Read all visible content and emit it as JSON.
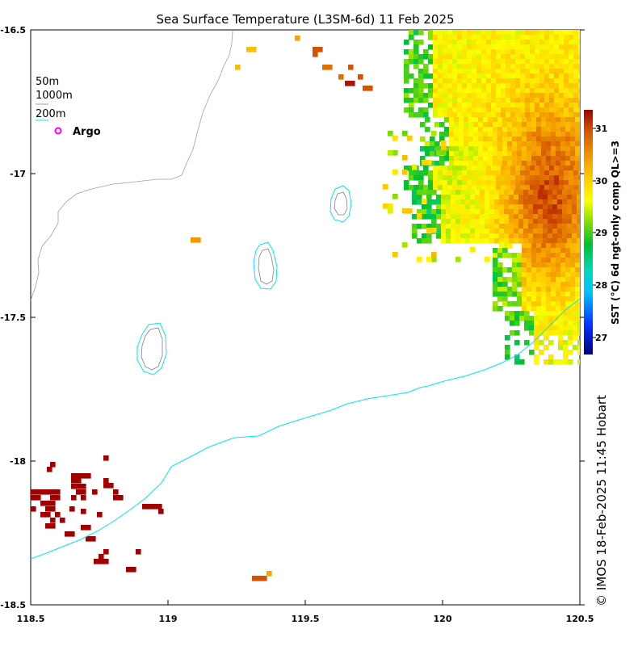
{
  "title": "Sea Surface Temperature (L3SM-6d) 11 Feb 2025",
  "credit": "© IMOS 18-Feb-2025 11:45 Hobart",
  "legend": {
    "items": [
      {
        "label": "50m",
        "color": "#ffffff"
      },
      {
        "label": "1000m",
        "color": "#a0a0a0"
      },
      {
        "label": "200m",
        "color": "#00e5ff"
      }
    ],
    "argo_label": "Argo",
    "argo_color": "#ff00ff"
  },
  "colorbar": {
    "title": "SST (°C) 6d ngt-only comp QL>=3",
    "ticks": [
      "27",
      "28",
      "29",
      "30",
      "31"
    ]
  },
  "axes": {
    "x_ticks": [
      "118.5",
      "119",
      "119.5",
      "120",
      "120.5"
    ],
    "y_ticks": [
      "-16.5",
      "-17",
      "-17.5",
      "-18",
      "-18.5"
    ]
  },
  "chart_data": {
    "type": "heatmap",
    "title": "Sea Surface Temperature (L3SM-6d) 11 Feb 2025",
    "xlim": [
      118.5,
      120.5
    ],
    "ylim": [
      -18.5,
      -16.5
    ],
    "color_range": [
      26.6,
      31.3
    ],
    "colors": {
      "warm": "#e07010",
      "hot": "#9a0a0a",
      "yellow": "#f2d800",
      "green": "#20c020",
      "contour_200m": "#00e5ff",
      "contour_1000m": "#a0a0a0"
    }
  }
}
